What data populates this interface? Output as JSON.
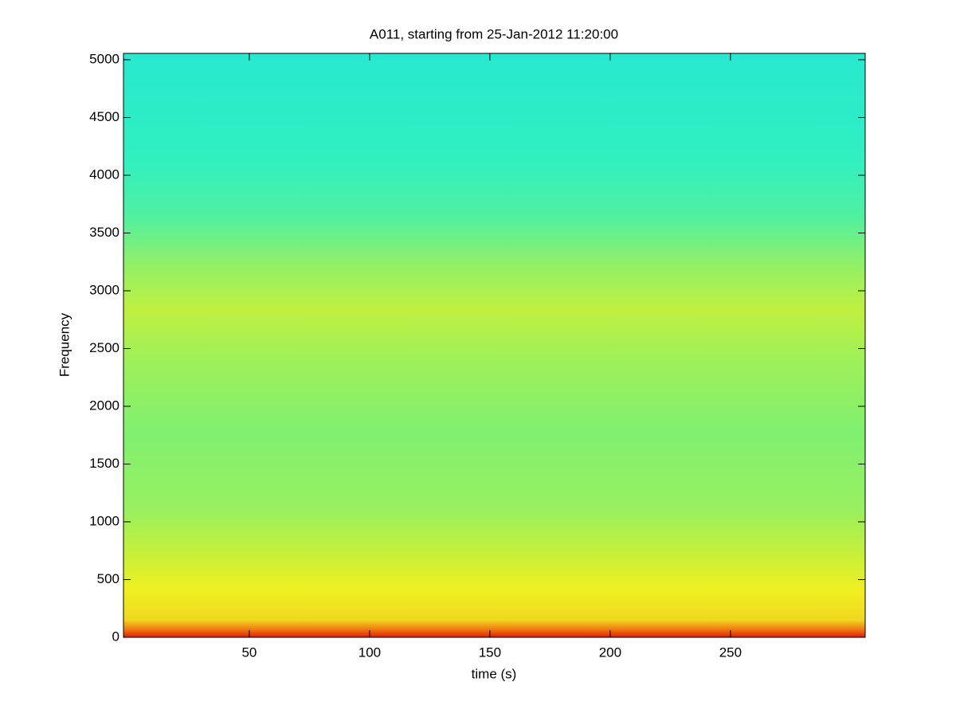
{
  "chart_data": {
    "type": "spectrogram",
    "title": "A011, starting from 25-Jan-2012 11:20:00",
    "xlabel": "time (s)",
    "ylabel": "Frequency",
    "colormap": "jet",
    "xlim": [
      -2.3,
      306
    ],
    "xticks": [
      50,
      100,
      150,
      200,
      250
    ],
    "ylim": [
      0,
      5055
    ],
    "yticks": [
      0,
      500,
      1000,
      1500,
      2000,
      2500,
      3000,
      3500,
      4000,
      4500,
      5000
    ]
  }
}
